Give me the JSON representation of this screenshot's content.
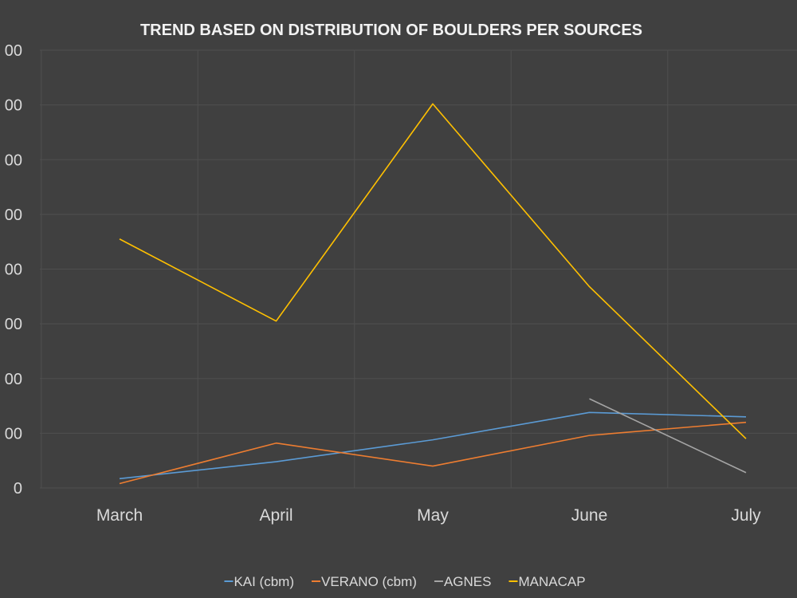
{
  "colors": {
    "background": "#404040",
    "grid": "#4f4f4f",
    "text": "#d9d9d9",
    "title": "#f2f2f2"
  },
  "chart_data": {
    "type": "line",
    "title": "TREND BASED ON DISTRIBUTION OF BOULDERS PER SOURCES",
    "xlabel": "",
    "ylabel": "",
    "categories": [
      "March",
      "April",
      "May",
      "June",
      "July"
    ],
    "ylim": [
      0,
      800
    ],
    "y_tick_labels": [
      "0",
      "00",
      "00",
      "00",
      "00",
      "00",
      "00",
      "00",
      "00"
    ],
    "grid": true,
    "legend": "bottom",
    "series": [
      {
        "name": "KAI (cbm)",
        "color": "#5b9bd5",
        "values": [
          17,
          48,
          88,
          138,
          130
        ]
      },
      {
        "name": "VERANO (cbm)",
        "color": "#ed7d31",
        "values": [
          8,
          82,
          40,
          96,
          120
        ]
      },
      {
        "name": "AGNES",
        "color": "#a5a5a5",
        "values": [
          null,
          null,
          null,
          163,
          28
        ]
      },
      {
        "name": "MANACAP",
        "color": "#ffc000",
        "values": [
          455,
          305,
          702,
          368,
          90
        ]
      }
    ]
  }
}
